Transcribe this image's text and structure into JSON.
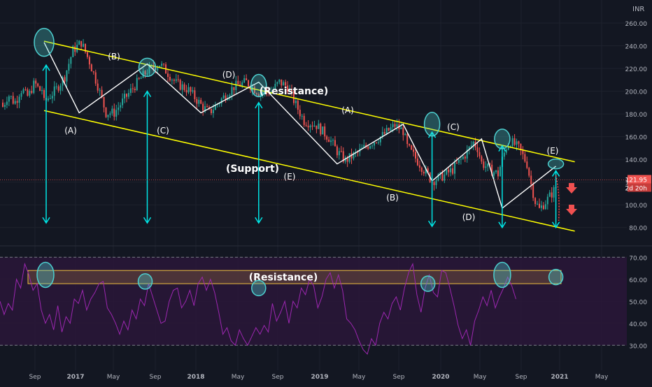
{
  "currency": "INR",
  "chart_data": [
    {
      "type": "candlestick",
      "x_ticks": [
        "Sep",
        "2017",
        "May",
        "Sep",
        "2018",
        "May",
        "Sep",
        "2019",
        "May",
        "Sep",
        "2020",
        "May",
        "Sep",
        "2021",
        "May"
      ],
      "y_ticks": [
        80,
        100,
        120,
        140,
        160,
        180,
        200,
        220,
        240,
        260
      ],
      "ylim": [
        70,
        268
      ],
      "grid": true,
      "last_price": "121.95",
      "countdown": "2d 20h",
      "close_path": [
        [
          0,
          190
        ],
        [
          6,
          202
        ],
        [
          10,
          213
        ],
        [
          14,
          236
        ],
        [
          18,
          243
        ],
        [
          22,
          226
        ],
        [
          26,
          205
        ],
        [
          30,
          181
        ],
        [
          34,
          181
        ],
        [
          38,
          191
        ],
        [
          44,
          205
        ],
        [
          50,
          218
        ],
        [
          56,
          224
        ],
        [
          60,
          216
        ],
        [
          64,
          207
        ],
        [
          70,
          201
        ],
        [
          76,
          188
        ],
        [
          80,
          181
        ],
        [
          86,
          193
        ],
        [
          92,
          204
        ],
        [
          98,
          208
        ],
        [
          104,
          199
        ],
        [
          110,
          200
        ],
        [
          114,
          208
        ],
        [
          118,
          204
        ],
        [
          122,
          188
        ],
        [
          126,
          174
        ],
        [
          132,
          170
        ],
        [
          138,
          159
        ],
        [
          142,
          147
        ],
        [
          146,
          139
        ],
        [
          152,
          146
        ],
        [
          158,
          154
        ],
        [
          164,
          161
        ],
        [
          170,
          170
        ],
        [
          174,
          165
        ],
        [
          176,
          151
        ],
        [
          180,
          141
        ],
        [
          184,
          131
        ],
        [
          188,
          121
        ],
        [
          194,
          126
        ],
        [
          198,
          131
        ],
        [
          204,
          144
        ],
        [
          208,
          155
        ],
        [
          210,
          150
        ],
        [
          212,
          137
        ],
        [
          216,
          131
        ],
        [
          220,
          127
        ],
        [
          222,
          140
        ],
        [
          224,
          151
        ],
        [
          226,
          156
        ],
        [
          230,
          150
        ],
        [
          234,
          136
        ],
        [
          236,
          118
        ],
        [
          238,
          103
        ],
        [
          240,
          96
        ],
        [
          244,
          105
        ],
        [
          248,
          115
        ],
        [
          252,
          124
        ],
        [
          256,
          126
        ],
        [
          262,
          128
        ],
        [
          266,
          124
        ],
        [
          270,
          126
        ],
        [
          274,
          131
        ],
        [
          276,
          124
        ],
        [
          280,
          114
        ],
        [
          284,
          111
        ],
        [
          287,
          112
        ],
        [
          288,
          122
        ]
      ],
      "pattern_labels": {
        "first": [
          "(A)",
          "(B)",
          "(C)",
          "(D)",
          "(E)"
        ],
        "second": [
          "(A)",
          "(B)",
          "(C)",
          "(D)",
          "(E)"
        ]
      },
      "wave_points": [
        [
          0,
          243
        ],
        [
          17,
          181
        ],
        [
          50,
          224
        ],
        [
          76,
          181
        ],
        [
          104,
          208
        ],
        [
          142,
          136
        ],
        [
          174,
          171
        ],
        [
          188,
          121
        ],
        [
          212,
          158
        ],
        [
          222,
          97
        ],
        [
          248,
          134
        ]
      ],
      "wave_label_keys": [
        "",
        "first.0",
        "first.1",
        "first.2",
        "first.3",
        "first.4",
        "second.0",
        "second.1",
        "second.2",
        "second.3",
        "second.4"
      ],
      "resistance_line": [
        [
          0,
          244
        ],
        [
          247,
          136
        ]
      ],
      "support_line": [
        [
          0,
          183
        ],
        [
          247,
          75
        ]
      ],
      "channel_labels": {
        "resistance": "(Resistance)",
        "support": "(Support)"
      },
      "arrow_drops": [
        {
          "x": 0,
          "from": 223,
          "to": 84
        },
        {
          "x": 50,
          "from": 200,
          "to": 84
        },
        {
          "x": 104,
          "from": 190,
          "to": 84
        },
        {
          "x": 188,
          "from": 164,
          "to": 81
        },
        {
          "x": 222,
          "from": 152,
          "to": 80
        },
        {
          "x": 248,
          "from": 130,
          "to": 80
        }
      ],
      "last_bar_x": 248,
      "projection": {
        "to": [
          250,
          86
        ]
      }
    },
    {
      "type": "line",
      "name": "oscillator",
      "y_ticks": [
        30,
        40,
        50,
        60,
        70
      ],
      "ylim": [
        25,
        72
      ],
      "dashed_levels": [
        30,
        70
      ],
      "band": {
        "from": 58,
        "to": 64,
        "label": "(Resistance)"
      },
      "values": [
        [
          0,
          50
        ],
        [
          2,
          44
        ],
        [
          4,
          49
        ],
        [
          6,
          46
        ],
        [
          8,
          60
        ],
        [
          10,
          56
        ],
        [
          12,
          67
        ],
        [
          14,
          62
        ],
        [
          16,
          55
        ],
        [
          18,
          58
        ],
        [
          20,
          46
        ],
        [
          22,
          40
        ],
        [
          24,
          44
        ],
        [
          26,
          37
        ],
        [
          28,
          48
        ],
        [
          30,
          36
        ],
        [
          32,
          43
        ],
        [
          34,
          40
        ],
        [
          36,
          51
        ],
        [
          38,
          49
        ],
        [
          40,
          55
        ],
        [
          42,
          46
        ],
        [
          44,
          51
        ],
        [
          46,
          54
        ],
        [
          48,
          58
        ],
        [
          50,
          59
        ],
        [
          52,
          47
        ],
        [
          54,
          44
        ],
        [
          56,
          40
        ],
        [
          58,
          35
        ],
        [
          60,
          41
        ],
        [
          62,
          37
        ],
        [
          64,
          46
        ],
        [
          66,
          42
        ],
        [
          68,
          51
        ],
        [
          70,
          48
        ],
        [
          72,
          58
        ],
        [
          74,
          52
        ],
        [
          76,
          46
        ],
        [
          78,
          40
        ],
        [
          80,
          41
        ],
        [
          82,
          50
        ],
        [
          84,
          55
        ],
        [
          86,
          56
        ],
        [
          88,
          47
        ],
        [
          90,
          50
        ],
        [
          92,
          55
        ],
        [
          94,
          48
        ],
        [
          96,
          58
        ],
        [
          98,
          61
        ],
        [
          100,
          55
        ],
        [
          102,
          60
        ],
        [
          104,
          54
        ],
        [
          106,
          45
        ],
        [
          108,
          35
        ],
        [
          110,
          38
        ],
        [
          112,
          32
        ],
        [
          114,
          30
        ],
        [
          116,
          37
        ],
        [
          118,
          33
        ],
        [
          120,
          30
        ],
        [
          122,
          34
        ],
        [
          124,
          38
        ],
        [
          126,
          35
        ],
        [
          128,
          39
        ],
        [
          130,
          36
        ],
        [
          132,
          49
        ],
        [
          134,
          41
        ],
        [
          136,
          45
        ],
        [
          138,
          50
        ],
        [
          140,
          40
        ],
        [
          142,
          50
        ],
        [
          144,
          47
        ],
        [
          146,
          56
        ],
        [
          148,
          53
        ],
        [
          150,
          60
        ],
        [
          152,
          57
        ],
        [
          154,
          47
        ],
        [
          156,
          52
        ],
        [
          158,
          60
        ],
        [
          160,
          63
        ],
        [
          162,
          56
        ],
        [
          164,
          62
        ],
        [
          166,
          55
        ],
        [
          168,
          42
        ],
        [
          170,
          40
        ],
        [
          172,
          37
        ],
        [
          174,
          32
        ],
        [
          176,
          28
        ],
        [
          178,
          26
        ],
        [
          180,
          33
        ],
        [
          182,
          30
        ],
        [
          184,
          40
        ],
        [
          186,
          45
        ],
        [
          188,
          42
        ],
        [
          190,
          49
        ],
        [
          192,
          52
        ],
        [
          194,
          46
        ],
        [
          196,
          56
        ],
        [
          198,
          63
        ],
        [
          200,
          67
        ],
        [
          202,
          53
        ],
        [
          204,
          45
        ],
        [
          206,
          56
        ],
        [
          208,
          62
        ],
        [
          210,
          54
        ],
        [
          212,
          52
        ],
        [
          214,
          64
        ],
        [
          216,
          63
        ],
        [
          218,
          56
        ],
        [
          220,
          48
        ],
        [
          222,
          39
        ],
        [
          224,
          33
        ],
        [
          226,
          37
        ],
        [
          228,
          30
        ],
        [
          230,
          41
        ],
        [
          232,
          46
        ],
        [
          234,
          52
        ],
        [
          236,
          48
        ],
        [
          238,
          55
        ],
        [
          240,
          47
        ],
        [
          242,
          52
        ],
        [
          244,
          56
        ],
        [
          246,
          61
        ],
        [
          248,
          57
        ],
        [
          250,
          51
        ]
      ],
      "circled_points": [
        {
          "x": 0,
          "y": 62
        },
        {
          "x": 49,
          "y": 59
        },
        {
          "x": 104,
          "y": 56
        },
        {
          "x": 186,
          "y": 58
        },
        {
          "x": 222,
          "y": 62
        },
        {
          "x": 248,
          "y": 61
        }
      ]
    }
  ],
  "colors": {
    "background": "#131722",
    "grid": "#1e222d",
    "text": "#b2b5be",
    "up": "#26a69a",
    "down": "#ef5350",
    "channel": "#ffff00",
    "wave": "#ffffff",
    "arrow": "#00e5e5",
    "circle": "#4dd0d0",
    "oscillator_line": "#9c27b0",
    "oscillator_fill": "#2a1638",
    "band_fill": "#5a3d3a",
    "band_border": "#f0c040",
    "price_tag": "#ef5350",
    "projection": "#ff4444",
    "down_arrow": "#f05050"
  }
}
